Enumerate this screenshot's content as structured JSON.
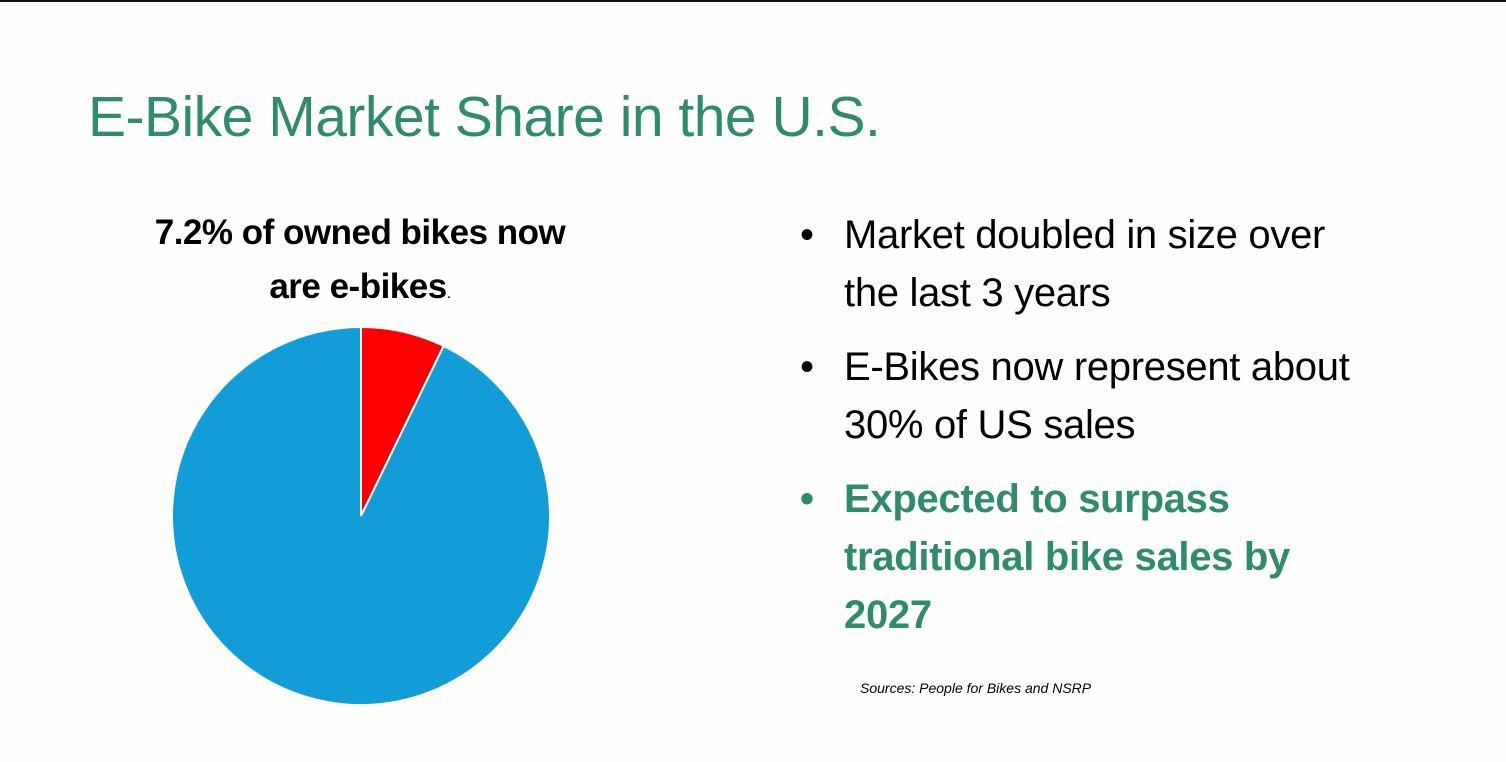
{
  "slide": {
    "title": "E-Bike Market Share in the U.S.",
    "bullets": [
      {
        "text": "Market doubled in size over the last 3 years",
        "highlight": false
      },
      {
        "text": "E-Bikes now represent about 30% of US sales",
        "highlight": false
      },
      {
        "text": "Expected to surpass traditional bike sales by 2027",
        "highlight": true
      }
    ],
    "bullet_glyph": "•",
    "sources": "Sources: People for Bikes and NSRP",
    "colors": {
      "title": "#2e8b6e",
      "highlight": "#2e8b6e"
    }
  },
  "chart_data": {
    "type": "pie",
    "title": "7.2% of owned bikes now are e-bikes",
    "title_suffix": ".",
    "values": [
      7.2,
      92.8
    ],
    "colors": [
      "#ff0000",
      "#129dd8"
    ],
    "start": "top",
    "direction": "clockwise"
  }
}
